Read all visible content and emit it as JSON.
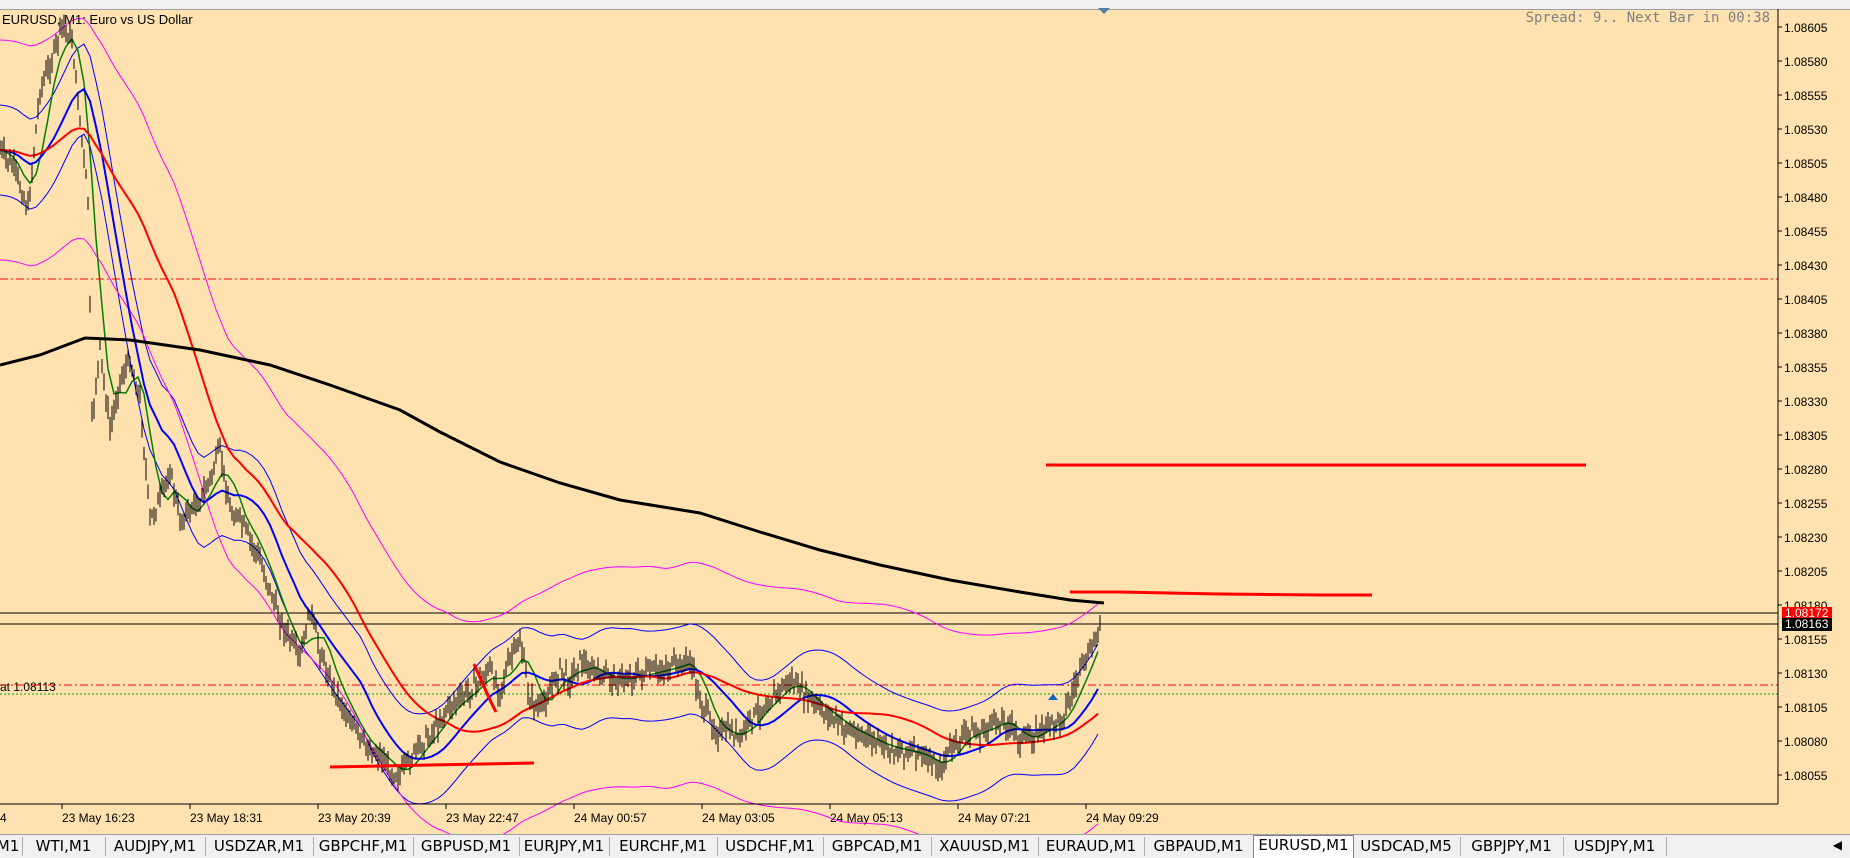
{
  "chart": {
    "title": "EURUSD, M1:  Euro vs US Dollar",
    "spread_text": "Spread: 9.. Next Bar in 00:38",
    "left_line_label": "at 1.08113",
    "top_left_fragment": "4",
    "ask_price_badge": "1.08172",
    "bid_price_badge": "1.08163",
    "price_axis_labels": [
      "1.08605",
      "1.08580",
      "1.08555",
      "1.08530",
      "1.08505",
      "1.08480",
      "1.08455",
      "1.08430",
      "1.08405",
      "1.08380",
      "1.08355",
      "1.08330",
      "1.08305",
      "1.08280",
      "1.08255",
      "1.08230",
      "1.08205",
      "1.08180",
      "1.08155",
      "1.08130",
      "1.08105",
      "1.08080",
      "1.08055"
    ],
    "time_axis_labels": [
      "23 May 16:23",
      "23 May 18:31",
      "23 May 20:39",
      "23 May 22:47",
      "24 May 00:57",
      "24 May 03:05",
      "24 May 05:13",
      "24 May 07:21",
      "24 May 09:29"
    ],
    "colors": {
      "background": "#FFE2B0",
      "candles": "#000000",
      "ma_long": "#000000",
      "ma_red": "#FF0000",
      "ma_blue": "#0000FF",
      "ma_green": "#008000",
      "bands_blue": "#0000FF",
      "bands_magenta": "#FF00FF",
      "level_lines": "#FF0000",
      "ask_badge": "#FF0000",
      "bid_badge": "#000000"
    }
  },
  "tabs": [
    {
      "label": "M1"
    },
    {
      "label": "WTI,M1"
    },
    {
      "label": "AUDJPY,M1"
    },
    {
      "label": "USDZAR,M1"
    },
    {
      "label": "GBPCHF,M1"
    },
    {
      "label": "GBPUSD,M1"
    },
    {
      "label": "EURJPY,M1"
    },
    {
      "label": "EURCHF,M1"
    },
    {
      "label": "USDCHF,M1"
    },
    {
      "label": "GBPCAD,M1"
    },
    {
      "label": "XAUUSD,M1"
    },
    {
      "label": "EURAUD,M1"
    },
    {
      "label": "GBPAUD,M1"
    },
    {
      "label": "EURUSD,M1",
      "active": true
    },
    {
      "label": "USDCAD,M5"
    },
    {
      "label": "GBPJPY,M1"
    },
    {
      "label": "USDJPY,M1"
    }
  ],
  "tab_scroll_icon": "triangle-left-icon"
}
